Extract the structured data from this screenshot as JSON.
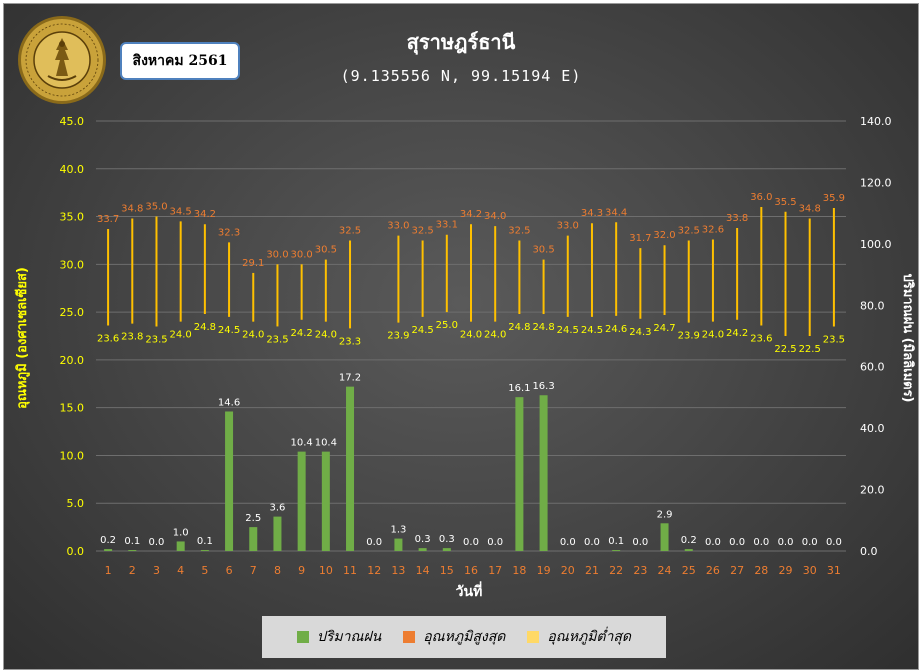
{
  "header": {
    "month_label": "สิงหาคม 2561",
    "title": "สุราษฎร์ธานี",
    "subtitle": "(9.135556 N, 99.15194 E)"
  },
  "logo": {
    "name": "meteorological-department-seal",
    "ring_text": "กรมอุตุนิยมวิทยา · METEOROLOGICAL DEPARTMENT"
  },
  "legend": {
    "rain_label": "ปริมาณฝน",
    "max_label": "อุณหภูมิสูงสุด",
    "min_label": "อุณหภูมิต่ำสุด"
  },
  "colors": {
    "rain": "#70ad47",
    "max": "#ed7d31",
    "min": "#ffd966",
    "temp_line": "#ffc000",
    "max_text": "#ed7d31",
    "min_text": "#ffff00",
    "axis_left_text": "#ffff00",
    "axis_right_text": "#ffffff",
    "x_tick_text": "#ed7d31"
  },
  "chart_data": {
    "type": "bar",
    "xlabel": "วันที่",
    "ylabel_left": "อุณหภูมิ (องศาเซลเซียส)",
    "ylabel_right": "ปริมาณฝน (มิลลิเมตร)",
    "ylim_left": [
      0,
      45
    ],
    "ylim_right": [
      0,
      140
    ],
    "yticks_left": [
      "0.0",
      "5.0",
      "10.0",
      "15.0",
      "20.0",
      "25.0",
      "30.0",
      "35.0",
      "40.0",
      "45.0"
    ],
    "yticks_right": [
      "0.0",
      "20.0",
      "40.0",
      "60.0",
      "80.0",
      "100.0",
      "120.0",
      "140.0"
    ],
    "categories": [
      "1",
      "2",
      "3",
      "4",
      "5",
      "6",
      "7",
      "8",
      "9",
      "10",
      "11",
      "12",
      "13",
      "14",
      "15",
      "16",
      "17",
      "18",
      "19",
      "20",
      "21",
      "22",
      "23",
      "24",
      "25",
      "26",
      "27",
      "28",
      "29",
      "30",
      "31"
    ],
    "grid": true,
    "legend_position": "bottom",
    "series": [
      {
        "name": "ปริมาณฝน",
        "values": [
          0.2,
          0.1,
          0.0,
          1.0,
          0.1,
          14.6,
          2.5,
          3.6,
          10.4,
          10.4,
          17.2,
          0.0,
          1.3,
          0.3,
          0.3,
          0.0,
          0.0,
          16.1,
          16.3,
          0.0,
          0.0,
          0.1,
          0.0,
          2.9,
          0.2,
          0.0,
          0.0,
          0.0,
          0.0,
          0.0,
          0.0
        ]
      },
      {
        "name": "อุณหภูมิสูงสุด",
        "values": [
          33.7,
          34.8,
          35.0,
          34.5,
          34.2,
          32.3,
          29.1,
          30.0,
          30.0,
          30.5,
          32.5,
          null,
          33.0,
          32.5,
          33.1,
          34.2,
          34.0,
          32.5,
          30.5,
          33.0,
          34.3,
          34.4,
          31.7,
          32.0,
          32.5,
          32.6,
          33.8,
          36.0,
          35.5,
          34.8,
          35.9
        ]
      },
      {
        "name": "อุณหภูมิต่ำสุด",
        "values": [
          23.6,
          23.8,
          23.5,
          24.0,
          24.8,
          24.5,
          24.0,
          23.5,
          24.2,
          24.0,
          23.3,
          null,
          23.9,
          24.5,
          25.0,
          24.0,
          24.0,
          24.8,
          24.8,
          24.5,
          24.5,
          24.6,
          24.3,
          24.7,
          23.9,
          24.0,
          24.2,
          23.6,
          22.5,
          22.5,
          23.5
        ]
      }
    ]
  }
}
